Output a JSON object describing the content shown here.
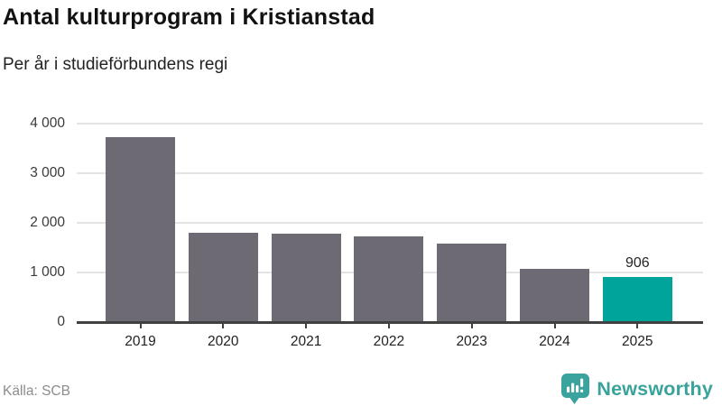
{
  "header": {
    "title": "Antal kulturprogram i Kristianstad",
    "subtitle": "Per år i studieförbundens regi"
  },
  "footer": {
    "source": "Källa: SCB",
    "brand": "Newsworthy",
    "brand_icon": "newsworthy-speech-bubble-barchart-icon"
  },
  "colors": {
    "bar_default": "#6d6a73",
    "bar_highlight": "#00a49a",
    "brand_teal": "#3ba39d",
    "gridline": "#e4e4e4",
    "axis": "#414141",
    "title_text": "#111111",
    "label_text": "#222222",
    "muted_text": "#8c8c8c"
  },
  "chart_data": {
    "type": "bar",
    "title": "Antal kulturprogram i Kristianstad",
    "subtitle": "Per år i studieförbundens regi",
    "categories": [
      "2019",
      "2020",
      "2021",
      "2022",
      "2023",
      "2024",
      "2025"
    ],
    "values": [
      3730,
      1800,
      1790,
      1730,
      1590,
      1070,
      906
    ],
    "highlight_index": 6,
    "data_labels": [
      {
        "index": 6,
        "text": "906"
      }
    ],
    "xlabel": "",
    "ylabel": "",
    "ylim": [
      0,
      4000
    ],
    "yticks": [
      0,
      1000,
      2000,
      3000,
      4000
    ],
    "ytick_labels": [
      "0",
      "1 000",
      "2 000",
      "3 000",
      "4 000"
    ],
    "grid": "horizontal",
    "legend": "none",
    "source": "Källa: SCB"
  }
}
